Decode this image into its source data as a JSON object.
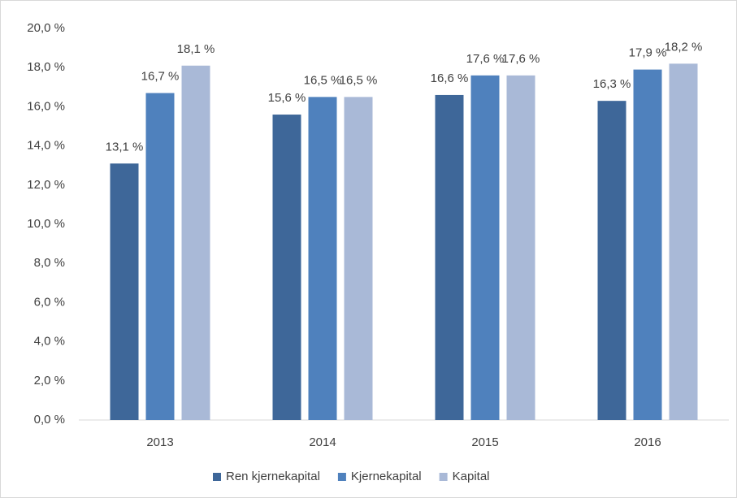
{
  "chart_data": {
    "type": "bar",
    "categories": [
      "2013",
      "2014",
      "2015",
      "2016"
    ],
    "series": [
      {
        "name": "Ren kjernekapital",
        "color": "#3e6799",
        "values": [
          13.1,
          15.6,
          16.6,
          16.3
        ],
        "value_labels": [
          "13,1 %",
          "15,6 %",
          "16,6 %",
          "16,3 %"
        ]
      },
      {
        "name": "Kjernekapital",
        "color": "#4f81bd",
        "values": [
          16.7,
          16.5,
          17.6,
          17.9
        ],
        "value_labels": [
          "16,7 %",
          "16,5 %",
          "17,6 %",
          "17,9 %"
        ]
      },
      {
        "name": "Kapital",
        "color": "#a9b9d7",
        "values": [
          18.1,
          16.5,
          17.6,
          18.2
        ],
        "value_labels": [
          "18,1 %",
          "16,5 %",
          "17,6 %",
          "18,2 %"
        ]
      }
    ],
    "ylim": [
      0,
      20
    ],
    "yticks": [
      {
        "value": 0,
        "label": "0,0 %"
      },
      {
        "value": 2,
        "label": "2,0 %"
      },
      {
        "value": 4,
        "label": "4,0 %"
      },
      {
        "value": 6,
        "label": "6,0 %"
      },
      {
        "value": 8,
        "label": "8,0 %"
      },
      {
        "value": 10,
        "label": "10,0 %"
      },
      {
        "value": 12,
        "label": "12,0 %"
      },
      {
        "value": 14,
        "label": "14,0 %"
      },
      {
        "value": 16,
        "label": "16,0 %"
      },
      {
        "value": 18,
        "label": "18,0 %"
      },
      {
        "value": 20,
        "label": "20,0 %"
      }
    ],
    "grid": false,
    "legend": "bottom"
  }
}
